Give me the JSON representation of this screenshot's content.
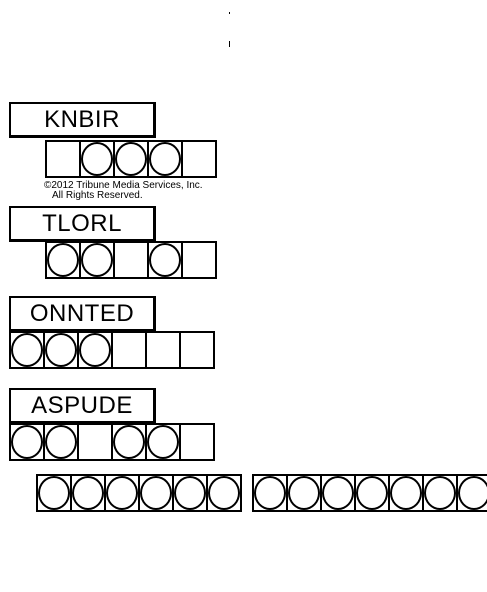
{
  "puzzles": [
    {
      "scrambled": "KNBIR",
      "circles": [
        false,
        true,
        true,
        true,
        false
      ]
    },
    {
      "scrambled": "TLORL",
      "circles": [
        true,
        true,
        false,
        true,
        false
      ]
    },
    {
      "scrambled": "ONNTED",
      "circles": [
        true,
        true,
        true,
        false,
        false,
        false
      ]
    },
    {
      "scrambled": "ASPUDE",
      "circles": [
        true,
        true,
        false,
        true,
        true,
        false
      ]
    }
  ],
  "copyright": {
    "line1": "©2012 Tribune Media Services, Inc.",
    "line2": "All Rights Reserved."
  },
  "answer": {
    "word1_length": 6,
    "word2_length": 7
  }
}
